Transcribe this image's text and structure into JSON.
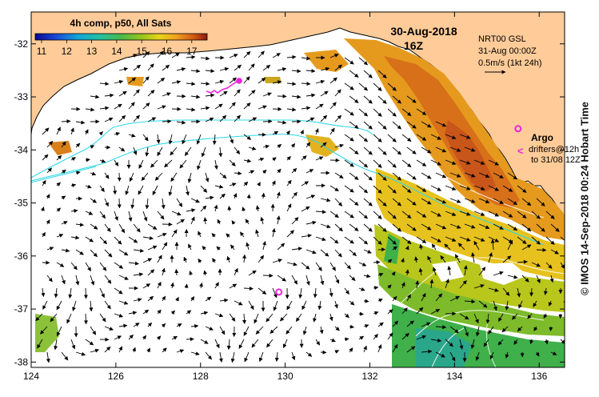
{
  "title": {
    "composite": "4h comp, p50, All Sats",
    "date": "30-Aug-2018",
    "time": "16Z"
  },
  "colorbar": {
    "labels": [
      "11",
      "12",
      "13",
      "14",
      "15",
      "16",
      "17"
    ],
    "stops": [
      "#08088f",
      "#1a48d8",
      "#12a6d8",
      "#25c0a0",
      "#49b94a",
      "#98c41d",
      "#e7d41a",
      "#f0a020",
      "#d25a12",
      "#8e1a12"
    ]
  },
  "currents_info": {
    "source": "NRT00 GSL",
    "time": "31-Aug 00:00Z",
    "scale": "0.5m/s (1kt 24h)"
  },
  "argo": {
    "label": "Argo",
    "sub1": "drifters@12h",
    "sub2": "to 31/08 12Z"
  },
  "credit": "© IMOS 14-Sep-2018 00:24 Hobart Time",
  "axes": {
    "lon": {
      "range": [
        124,
        136.6
      ],
      "ticks": [
        "124",
        "126",
        "128",
        "130",
        "132",
        "134",
        "136"
      ]
    },
    "lat": {
      "range": [
        -38.1,
        -31.4
      ],
      "ticks": [
        "-32",
        "-33",
        "-34",
        "-35",
        "-36",
        "-37",
        "-38"
      ]
    }
  },
  "colors": {
    "land": "#ffcc99",
    "cyan_contour": "#30d8e8",
    "magenta": "#ee22dd",
    "arrow": "#000000"
  },
  "markers": [
    {
      "name": "argo-float",
      "lon": 129.85,
      "lat": -36.68
    },
    {
      "name": "argo-legend-symbol",
      "lon": 135.5,
      "lat": -33.6
    }
  ]
}
